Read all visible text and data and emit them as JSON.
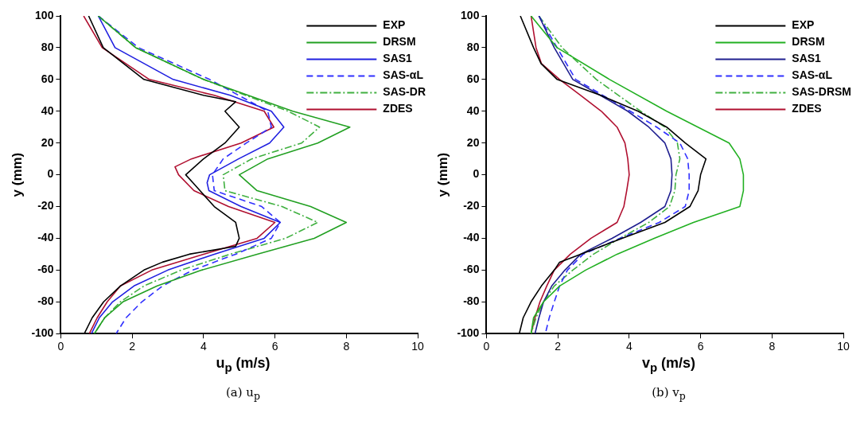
{
  "chart_data": [
    {
      "type": "line",
      "xlabel": "u$_{p}$ (m/s)",
      "ylabel": "y (mm)",
      "xlim": [
        0,
        10
      ],
      "ylim": [
        -100,
        100
      ],
      "xticks": [
        0,
        2,
        4,
        6,
        8,
        10
      ],
      "yticks": [
        -100,
        -80,
        -60,
        -40,
        -20,
        0,
        20,
        40,
        60,
        80,
        100
      ],
      "grid": false,
      "legend": "top right",
      "marker": "none",
      "annotations": [
        "(a) u$_{p}$"
      ],
      "series": [
        {
          "name": "EXP",
          "color": "#000000",
          "line_style": "solid",
          "x": [
            0.78,
            1.19,
            2.33,
            4.0,
            4.9,
            4.6,
            5.0,
            4.6,
            4.0,
            3.5,
            3.7,
            3.9,
            4.3,
            4.9,
            5.0,
            4.9,
            3.6,
            2.85,
            2.33,
            1.67,
            1.2,
            0.88,
            0.66
          ],
          "values": [
            100,
            80,
            60,
            50,
            46,
            40,
            30,
            20,
            10,
            0,
            -5,
            -10,
            -20,
            -30,
            -40,
            -45,
            -50,
            -55,
            -60,
            -70,
            -80,
            -90,
            -100
          ]
        },
        {
          "name": "DRSM",
          "color": "#22a022",
          "line_style": "solid",
          "x": [
            1.05,
            2.1,
            4.0,
            6.5,
            8.1,
            7.2,
            5.8,
            5.0,
            5.5,
            7.0,
            8.0,
            7.1,
            5.5,
            3.95,
            2.7,
            1.74,
            1.23,
            0.94
          ],
          "values": [
            100,
            80,
            60,
            40,
            30,
            20,
            10,
            0,
            -10,
            -20,
            -30,
            -40,
            -50,
            -60,
            -70,
            -80,
            -90,
            -100
          ]
        },
        {
          "name": "SAS1",
          "color": "#2020e0",
          "line_style": "solid",
          "x": [
            1.05,
            1.52,
            3.15,
            4.75,
            5.9,
            6.25,
            5.85,
            4.98,
            4.17,
            4.1,
            4.15,
            5.05,
            6.15,
            5.7,
            4.3,
            3.0,
            2.05,
            1.45,
            1.08,
            0.86
          ],
          "values": [
            100,
            80,
            60,
            50,
            40,
            30,
            20,
            10,
            0,
            -5,
            -10,
            -20,
            -30,
            -40,
            -50,
            -60,
            -70,
            -80,
            -90,
            -100
          ]
        },
        {
          "name": "SAS-αL",
          "color": "#3030ff",
          "line_style": "dashed",
          "x": [
            1.05,
            2.18,
            4.17,
            5.8,
            5.9,
            5.2,
            4.55,
            4.25,
            4.3,
            5.63,
            6.15,
            5.9,
            4.9,
            3.7,
            2.85,
            2.27,
            1.83,
            1.55
          ],
          "values": [
            100,
            80,
            60,
            40,
            30,
            20,
            10,
            0,
            -10,
            -20,
            -30,
            -40,
            -50,
            -60,
            -70,
            -80,
            -90,
            -100
          ]
        },
        {
          "name": "SAS-DR",
          "color": "#40b040",
          "line_style": "dashdot",
          "x": [
            1.05,
            2.1,
            4.0,
            6.37,
            7.25,
            6.75,
            5.35,
            4.55,
            4.6,
            6.2,
            7.2,
            6.3,
            4.75,
            3.37,
            2.33,
            1.67,
            1.23,
            0.94
          ],
          "values": [
            100,
            80,
            60,
            40,
            30,
            20,
            10,
            0,
            -10,
            -20,
            -30,
            -40,
            -50,
            -60,
            -70,
            -80,
            -90,
            -100
          ]
        },
        {
          "name": "ZDES",
          "color": "#b01030",
          "line_style": "solid",
          "x": [
            0.64,
            1.16,
            2.48,
            4.3,
            5.7,
            5.97,
            5.05,
            3.66,
            3.2,
            3.3,
            3.73,
            4.7,
            6.0,
            5.5,
            4.0,
            2.55,
            1.67,
            1.3,
            1.02,
            0.8
          ],
          "values": [
            100,
            80,
            60,
            50,
            40,
            30,
            20,
            10,
            5,
            0,
            -10,
            -20,
            -30,
            -40,
            -50,
            -60,
            -70,
            -80,
            -90,
            -100
          ]
        }
      ]
    },
    {
      "type": "line",
      "xlabel": "v$_{p}$ (m/s)",
      "ylabel": "y (mm)",
      "xlim": [
        0,
        10
      ],
      "ylim": [
        -100,
        100
      ],
      "xticks": [
        0,
        2,
        4,
        6,
        8,
        10
      ],
      "yticks": [
        -100,
        -80,
        -60,
        -40,
        -20,
        0,
        20,
        40,
        60,
        80,
        100
      ],
      "grid": false,
      "legend": "top right",
      "marker": "none",
      "annotations": [
        "(b) v$_{p}$"
      ],
      "series": [
        {
          "name": "EXP",
          "color": "#000000",
          "line_style": "solid",
          "x": [
            0.95,
            1.32,
            1.53,
            1.98,
            3.2,
            4.25,
            5.05,
            5.57,
            6.15,
            6.0,
            5.93,
            5.7,
            5.0,
            3.8,
            2.64,
            2.05,
            1.9,
            1.54,
            1.25,
            1.03,
            0.92
          ],
          "values": [
            100,
            80,
            70,
            60,
            50,
            40,
            30,
            20,
            10,
            0,
            -10,
            -20,
            -30,
            -40,
            -50,
            -55,
            -60,
            -70,
            -80,
            -90,
            -100
          ]
        },
        {
          "name": "DRSM",
          "color": "#22b022",
          "line_style": "solid",
          "x": [
            1.25,
            1.98,
            3.45,
            5.05,
            6.8,
            7.1,
            7.2,
            7.2,
            7.1,
            5.8,
            4.7,
            3.66,
            2.78,
            2.05,
            1.6,
            1.32,
            1.25
          ],
          "values": [
            100,
            80,
            60,
            40,
            20,
            10,
            0,
            -10,
            -20,
            -30,
            -40,
            -50,
            -60,
            -70,
            -80,
            -90,
            -100
          ]
        },
        {
          "name": "SAS1",
          "color": "#202090",
          "line_style": "solid",
          "x": [
            1.47,
            1.9,
            2.42,
            3.96,
            4.55,
            5.0,
            5.17,
            5.2,
            5.17,
            5.0,
            4.32,
            3.52,
            2.64,
            2.2,
            1.83,
            1.6,
            1.47,
            1.36
          ],
          "values": [
            100,
            80,
            60,
            40,
            30,
            20,
            10,
            0,
            -10,
            -20,
            -30,
            -40,
            -50,
            -60,
            -70,
            -80,
            -90,
            -100
          ]
        },
        {
          "name": "SAS-αL",
          "color": "#3030ff",
          "line_style": "dashed",
          "x": [
            1.47,
            1.98,
            2.5,
            4.03,
            4.77,
            5.42,
            5.64,
            5.68,
            5.68,
            5.57,
            4.84,
            3.74,
            2.71,
            2.27,
            2.05,
            1.9,
            1.76,
            1.65
          ],
          "values": [
            100,
            80,
            60,
            40,
            30,
            20,
            10,
            0,
            -10,
            -20,
            -30,
            -40,
            -50,
            -60,
            -70,
            -80,
            -90,
            -100
          ]
        },
        {
          "name": "SAS-DRSM",
          "color": "#40b040",
          "line_style": "dashdot",
          "x": [
            1.47,
            2.12,
            3.08,
            4.32,
            5.0,
            5.35,
            5.42,
            5.31,
            5.28,
            5.13,
            4.55,
            3.74,
            3.0,
            2.42,
            1.9,
            1.6,
            1.39,
            1.25
          ],
          "values": [
            100,
            80,
            60,
            40,
            30,
            20,
            10,
            0,
            -10,
            -20,
            -30,
            -40,
            -50,
            -60,
            -70,
            -80,
            -90,
            -100
          ]
        },
        {
          "name": "ZDES",
          "color": "#b01030",
          "line_style": "solid",
          "x": [
            1.25,
            1.39,
            1.54,
            2.05,
            2.64,
            3.22,
            3.66,
            3.88,
            3.96,
            4.0,
            3.93,
            3.85,
            3.66,
            2.93,
            2.35,
            1.9,
            1.69,
            1.5,
            1.36,
            1.25
          ],
          "values": [
            100,
            80,
            70,
            60,
            50,
            40,
            30,
            20,
            10,
            0,
            -10,
            -20,
            -30,
            -40,
            -50,
            -60,
            -70,
            -80,
            -90,
            -100
          ]
        }
      ]
    }
  ]
}
